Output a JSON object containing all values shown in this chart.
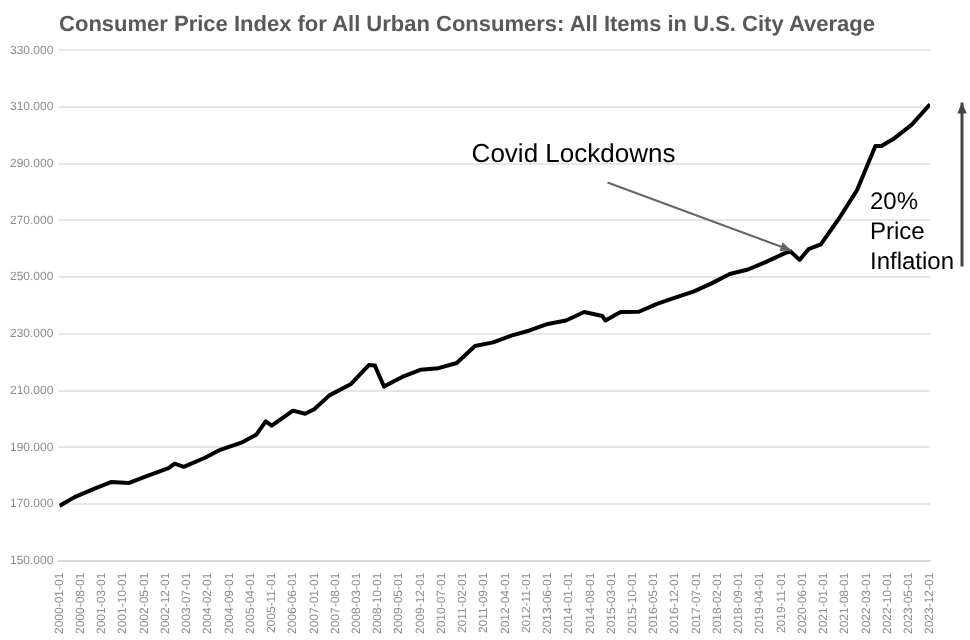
{
  "chart_data": {
    "type": "line",
    "title": "Consumer Price Index for All Urban Consumers: All Items in U.S. City Average",
    "x": [
      "2000-01",
      "2000-06",
      "2001-01",
      "2001-06",
      "2001-12",
      "2002-06",
      "2003-01",
      "2003-03",
      "2003-06",
      "2004-01",
      "2004-06",
      "2005-01",
      "2005-06",
      "2005-09",
      "2005-11",
      "2006-06",
      "2006-10",
      "2007-01",
      "2007-06",
      "2008-01",
      "2008-07",
      "2008-09",
      "2008-12",
      "2009-06",
      "2009-12",
      "2010-06",
      "2010-12",
      "2011-06",
      "2011-12",
      "2012-06",
      "2012-12",
      "2013-06",
      "2013-12",
      "2014-06",
      "2014-12",
      "2015-01",
      "2015-06",
      "2015-12",
      "2016-06",
      "2016-12",
      "2017-06",
      "2017-12",
      "2018-06",
      "2018-12",
      "2019-06",
      "2019-12",
      "2020-02",
      "2020-05",
      "2020-08",
      "2020-12",
      "2021-06",
      "2021-12",
      "2022-06",
      "2022-08",
      "2022-12",
      "2023-06",
      "2023-12"
    ],
    "series": [
      {
        "color": "#000000",
        "values": [
          169.3,
          172.4,
          175.6,
          177.7,
          177.4,
          179.9,
          182.6,
          184.2,
          183.1,
          186.3,
          189.1,
          191.6,
          194.5,
          199.1,
          197.6,
          202.9,
          201.8,
          203.4,
          208.3,
          212.2,
          219.0,
          218.8,
          211.4,
          214.8,
          217.3,
          217.9,
          219.7,
          225.7,
          227.0,
          229.4,
          231.2,
          233.5,
          234.7,
          237.7,
          236.3,
          234.7,
          237.7,
          237.8,
          240.6,
          242.8,
          244.9,
          247.8,
          251.1,
          252.7,
          255.4,
          258.4,
          259.1,
          256.1,
          259.9,
          261.6,
          270.7,
          280.8,
          296.3,
          296.3,
          298.8,
          303.8,
          311.0
        ]
      }
    ],
    "xlim": [
      "2000-01",
      "2023-12"
    ],
    "xticks": [
      {
        "value": "2000-01",
        "label": "2000-01-01"
      },
      {
        "value": "2000-08",
        "label": "2000-08-01"
      },
      {
        "value": "2001-03",
        "label": "2001-03-01"
      },
      {
        "value": "2001-10",
        "label": "2001-10-01"
      },
      {
        "value": "2002-05",
        "label": "2002-05-01"
      },
      {
        "value": "2002-12",
        "label": "2002-12-01"
      },
      {
        "value": "2003-07",
        "label": "2003-07-01"
      },
      {
        "value": "2004-02",
        "label": "2004-02-01"
      },
      {
        "value": "2004-09",
        "label": "2004-09-01"
      },
      {
        "value": "2005-04",
        "label": "2005-04-01"
      },
      {
        "value": "2005-11",
        "label": "2005-11-01"
      },
      {
        "value": "2006-06",
        "label": "2006-06-01"
      },
      {
        "value": "2007-01",
        "label": "2007-01-01"
      },
      {
        "value": "2007-08",
        "label": "2007-08-01"
      },
      {
        "value": "2008-03",
        "label": "2008-03-01"
      },
      {
        "value": "2008-10",
        "label": "2008-10-01"
      },
      {
        "value": "2009-05",
        "label": "2009-05-01"
      },
      {
        "value": "2009-12",
        "label": "2009-12-01"
      },
      {
        "value": "2010-07",
        "label": "2010-07-01"
      },
      {
        "value": "2011-02",
        "label": "2011-02-01"
      },
      {
        "value": "2011-09",
        "label": "2011-09-01"
      },
      {
        "value": "2012-04",
        "label": "2012-04-01"
      },
      {
        "value": "2012-11",
        "label": "2012-11-01"
      },
      {
        "value": "2013-06",
        "label": "2013-06-01"
      },
      {
        "value": "2014-01",
        "label": "2014-01-01"
      },
      {
        "value": "2014-08",
        "label": "2014-08-01"
      },
      {
        "value": "2015-03",
        "label": "2015-03-01"
      },
      {
        "value": "2015-10",
        "label": "2015-10-01"
      },
      {
        "value": "2016-05",
        "label": "2016-05-01"
      },
      {
        "value": "2016-12",
        "label": "2016-12-01"
      },
      {
        "value": "2017-07",
        "label": "2017-07-01"
      },
      {
        "value": "2018-02",
        "label": "2018-02-01"
      },
      {
        "value": "2018-09",
        "label": "2018-09-01"
      },
      {
        "value": "2019-04",
        "label": "2019-04-01"
      },
      {
        "value": "2019-11",
        "label": "2019-11-01"
      },
      {
        "value": "2020-06",
        "label": "2020-06-01"
      },
      {
        "value": "2021-01",
        "label": "2021-01-01"
      },
      {
        "value": "2021-08",
        "label": "2021-08-01"
      },
      {
        "value": "2022-03",
        "label": "2022-03-01"
      },
      {
        "value": "2022-10",
        "label": "2022-10-01"
      },
      {
        "value": "2023-05",
        "label": "2023-05-01"
      },
      {
        "value": "2023-12",
        "label": "2023-12-01"
      }
    ],
    "ylim": [
      150,
      330
    ],
    "yticks": [
      {
        "value": 150,
        "label": "150.000"
      },
      {
        "value": 170,
        "label": "170.000"
      },
      {
        "value": 190,
        "label": "190.000"
      },
      {
        "value": 210,
        "label": "210.000"
      },
      {
        "value": 230,
        "label": "230.000"
      },
      {
        "value": 250,
        "label": "250.000"
      },
      {
        "value": 270,
        "label": "270.000"
      },
      {
        "value": 290,
        "label": "290.000"
      },
      {
        "value": 310,
        "label": "310.000"
      },
      {
        "value": 330,
        "label": "330.000"
      }
    ],
    "grid": "y",
    "legend": false,
    "marker": "none",
    "line_style": "solid",
    "annotations": [
      {
        "text": "Covid Lockdowns",
        "x": "2020-03",
        "y": 258
      },
      "20% Price Inflation"
    ]
  }
}
